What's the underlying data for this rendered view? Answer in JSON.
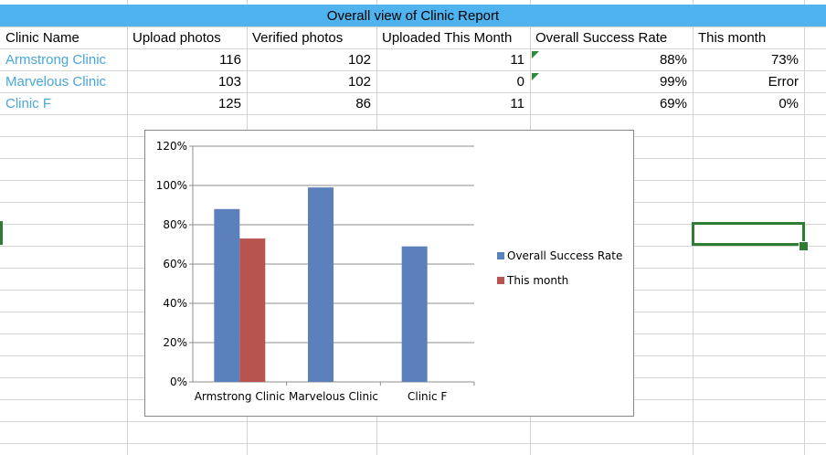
{
  "table": {
    "title": "Overall view of Clinic Report",
    "headers": [
      "Clinic Name",
      "Upload photos",
      "Verified photos",
      "Uploaded This Month",
      "Overall Success Rate",
      "This month"
    ],
    "rows": [
      [
        "Armstrong Clinic",
        "116",
        "102",
        "11",
        "88%",
        "73%"
      ],
      [
        "Marvelous Clinic",
        "103",
        "102",
        "0",
        "99%",
        "Error"
      ],
      [
        "Clinic F",
        "125",
        "86",
        "11",
        "69%",
        "0%"
      ]
    ]
  },
  "colors": {
    "title_fill": "#4eb3ef",
    "clinic_name_link": "#48a7dc",
    "series_overall": "#5b80bb",
    "series_month": "#b85450",
    "selection": "#2e7d32",
    "error_flag": "#2e8b3c"
  },
  "chart_data": {
    "type": "bar",
    "categories": [
      "Armstrong Clinic",
      "Marvelous Clinic",
      "Clinic F"
    ],
    "series": [
      {
        "name": "Overall Success Rate",
        "values": [
          88,
          99,
          69
        ],
        "color": "#5b80bb"
      },
      {
        "name": "This month",
        "values": [
          73,
          0,
          0
        ],
        "color": "#b85450"
      }
    ],
    "yticks": [
      "0%",
      "20%",
      "40%",
      "60%",
      "80%",
      "100%",
      "120%"
    ],
    "ylim": [
      0,
      120
    ],
    "grid": true,
    "legend_position": "right",
    "title": "",
    "xlabel": "",
    "ylabel": ""
  }
}
